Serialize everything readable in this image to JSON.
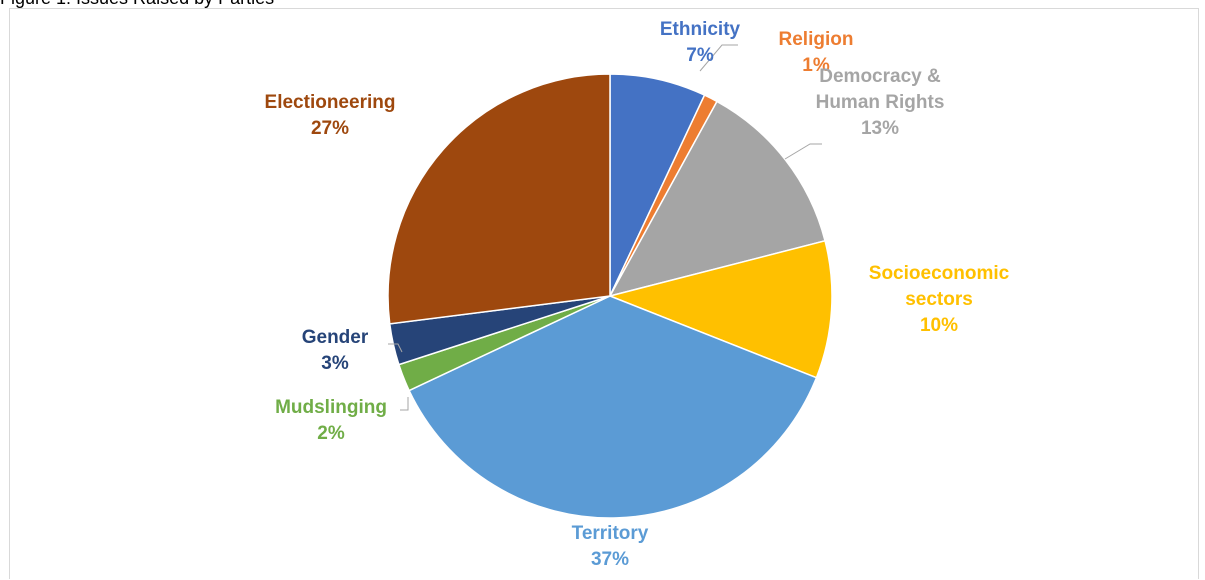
{
  "caption": "Figure 1: Issues Raised by Parties",
  "chart_data": {
    "type": "pie",
    "title": "",
    "slices": [
      {
        "name": "Ethnicity",
        "lines": [
          "Ethnicity"
        ],
        "value": 7,
        "label": "7%",
        "color": "#4472C4"
      },
      {
        "name": "Religion",
        "lines": [
          "Religion"
        ],
        "value": 1,
        "label": "1%",
        "color": "#ED7D31"
      },
      {
        "name": "Democracy & Human Rights",
        "lines": [
          "Democracy &",
          "Human Rights"
        ],
        "value": 13,
        "label": "13%",
        "color": "#A5A5A5"
      },
      {
        "name": "Socioeconomic sectors",
        "lines": [
          "Socioeconomic",
          "sectors"
        ],
        "value": 10,
        "label": "10%",
        "color": "#FFC000"
      },
      {
        "name": "Territory",
        "lines": [
          "Territory"
        ],
        "value": 37,
        "label": "37%",
        "color": "#5B9BD5"
      },
      {
        "name": "Mudslinging",
        "lines": [
          "Mudslinging"
        ],
        "value": 2,
        "label": "2%",
        "color": "#70AD47"
      },
      {
        "name": "Gender",
        "lines": [
          "Gender"
        ],
        "value": 3,
        "label": "3%",
        "color": "#264478"
      },
      {
        "name": "Electioneering",
        "lines": [
          "Electioneering"
        ],
        "value": 27,
        "label": "27%",
        "color": "#9E480E"
      }
    ]
  }
}
